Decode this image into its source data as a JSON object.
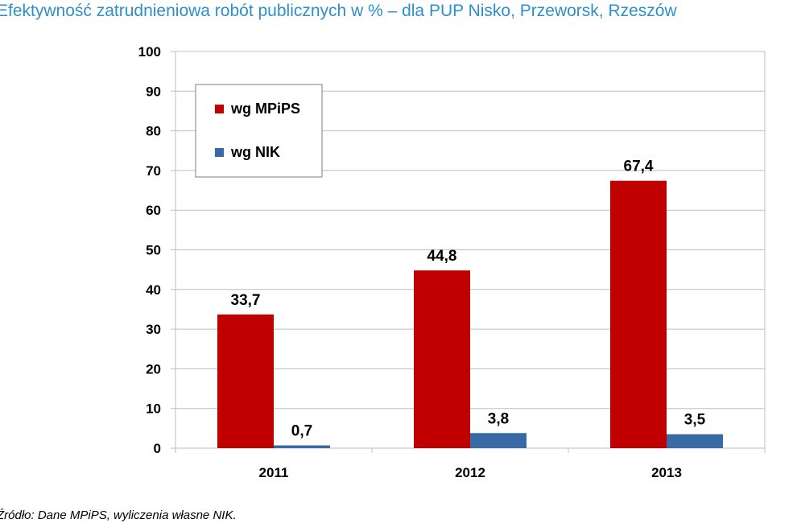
{
  "title": "Efektywność zatrudnieniowa robót publicznych w % – dla PUP Nisko, Przeworsk, Rzeszów",
  "source_note": "Źródło: Dane MPiPS, wyliczenia własne NIK.",
  "chart_data": {
    "type": "bar",
    "categories": [
      "2011",
      "2012",
      "2013"
    ],
    "series": [
      {
        "name": "wg MPiPS",
        "values": [
          33.7,
          44.8,
          67.4
        ],
        "labels": [
          "33,7",
          "44,8",
          "67,4"
        ],
        "color": "#c00000"
      },
      {
        "name": "wg NIK",
        "values": [
          0.7,
          3.8,
          3.5
        ],
        "labels": [
          "0,7",
          "3,8",
          "3,5"
        ],
        "color": "#3a6aa6"
      }
    ],
    "ylim": [
      0,
      100
    ],
    "yticks": [
      0,
      10,
      20,
      30,
      40,
      50,
      60,
      70,
      80,
      90,
      100
    ],
    "grid": true,
    "legend_position": "top-left"
  }
}
